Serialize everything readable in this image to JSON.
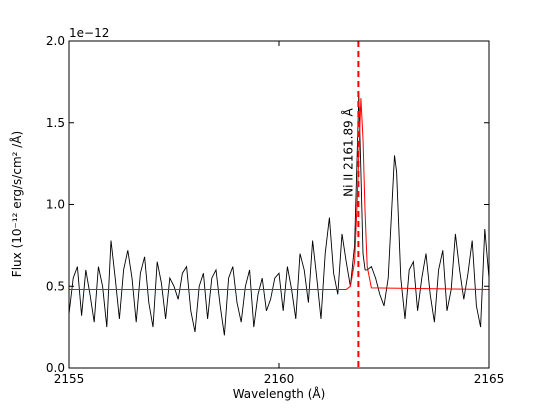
{
  "chart_data": {
    "type": "line",
    "xlabel": "Wavelength (Å)",
    "ylabel": "Flux (10⁻¹² erg/s/cm² /Å)",
    "offset_text": "1e−12",
    "xlim": [
      2155,
      2165
    ],
    "ylim": [
      0.0,
      2.0
    ],
    "x_ticks": [
      2155,
      2160,
      2165
    ],
    "x_tick_labels": [
      "2155",
      "2160",
      "2165"
    ],
    "y_ticks": [
      0.0,
      0.5,
      1.0,
      1.5,
      2.0
    ],
    "y_tick_labels": [
      "0.0",
      "0.5",
      "1.0",
      "1.5",
      "2.0"
    ],
    "grid": false,
    "series": [
      {
        "color": "#000000",
        "x": [
          2155.0,
          2155.1,
          2155.2,
          2155.3,
          2155.4,
          2155.5,
          2155.6,
          2155.7,
          2155.8,
          2155.9,
          2156.0,
          2156.1,
          2156.2,
          2156.3,
          2156.4,
          2156.5,
          2156.6,
          2156.7,
          2156.8,
          2156.9,
          2157.0,
          2157.1,
          2157.2,
          2157.3,
          2157.4,
          2157.5,
          2157.6,
          2157.7,
          2157.8,
          2157.9,
          2158.0,
          2158.1,
          2158.2,
          2158.3,
          2158.4,
          2158.5,
          2158.6,
          2158.7,
          2158.8,
          2158.9,
          2159.0,
          2159.1,
          2159.2,
          2159.3,
          2159.4,
          2159.5,
          2159.6,
          2159.7,
          2159.8,
          2159.9,
          2160.0,
          2160.1,
          2160.2,
          2160.3,
          2160.4,
          2160.5,
          2160.6,
          2160.7,
          2160.8,
          2160.9,
          2161.0,
          2161.1,
          2161.2,
          2161.3,
          2161.4,
          2161.5,
          2161.6,
          2161.7,
          2161.8,
          2161.85,
          2161.9,
          2161.95,
          2162.0,
          2162.05,
          2162.1,
          2162.2,
          2162.3,
          2162.4,
          2162.5,
          2162.6,
          2162.7,
          2162.75,
          2162.8,
          2162.9,
          2163.0,
          2163.1,
          2163.2,
          2163.3,
          2163.4,
          2163.5,
          2163.6,
          2163.7,
          2163.8,
          2163.9,
          2164.0,
          2164.1,
          2164.2,
          2164.3,
          2164.4,
          2164.5,
          2164.6,
          2164.7,
          2164.8,
          2164.9,
          2165.0
        ],
        "y": [
          0.33,
          0.55,
          0.62,
          0.32,
          0.6,
          0.45,
          0.28,
          0.62,
          0.5,
          0.25,
          0.78,
          0.55,
          0.3,
          0.6,
          0.72,
          0.55,
          0.28,
          0.58,
          0.68,
          0.4,
          0.25,
          0.65,
          0.52,
          0.3,
          0.55,
          0.5,
          0.42,
          0.58,
          0.62,
          0.35,
          0.22,
          0.5,
          0.58,
          0.3,
          0.55,
          0.6,
          0.38,
          0.2,
          0.55,
          0.62,
          0.4,
          0.28,
          0.5,
          0.6,
          0.25,
          0.45,
          0.55,
          0.35,
          0.42,
          0.55,
          0.58,
          0.35,
          0.62,
          0.48,
          0.3,
          0.7,
          0.6,
          0.4,
          0.78,
          0.55,
          0.3,
          0.7,
          0.92,
          0.58,
          0.45,
          0.82,
          0.65,
          0.5,
          0.75,
          1.2,
          1.67,
          1.2,
          0.7,
          0.6,
          0.6,
          0.62,
          0.55,
          0.45,
          0.38,
          0.55,
          1.05,
          1.3,
          1.2,
          0.55,
          0.3,
          0.6,
          0.65,
          0.35,
          0.55,
          0.7,
          0.45,
          0.28,
          0.6,
          0.72,
          0.35,
          0.48,
          0.82,
          0.6,
          0.42,
          0.58,
          0.78,
          0.38,
          0.25,
          0.85,
          0.55
        ]
      },
      {
        "color": "#ff0000",
        "x": [
          2155.0,
          2161.6,
          2161.7,
          2161.8,
          2161.85,
          2161.9,
          2161.95,
          2162.0,
          2162.05,
          2162.1,
          2162.2,
          2165.0
        ],
        "y": [
          0.48,
          0.48,
          0.5,
          0.65,
          0.95,
          1.3,
          1.65,
          1.4,
          0.95,
          0.62,
          0.49,
          0.48
        ]
      }
    ],
    "vline": {
      "x": 2161.89,
      "color": "#ff0000",
      "style": "dashed"
    },
    "annotation": {
      "text": "Ni II  2161.89 Å",
      "x": 2161.89,
      "y": 1.65,
      "rotation": 90
    }
  }
}
